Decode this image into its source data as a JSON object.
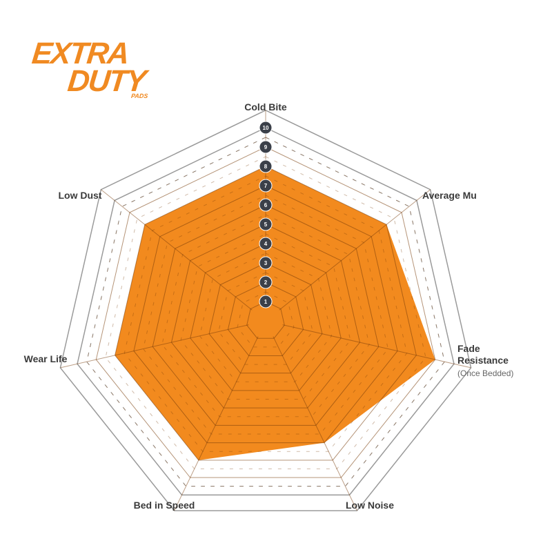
{
  "logo": {
    "line1": "EXTRA",
    "line2": "DUTY",
    "line3": "PADS"
  },
  "chart_data": {
    "type": "radar",
    "title": "",
    "axes": [
      {
        "label": "Cold Bite"
      },
      {
        "label": "Average Mu"
      },
      {
        "label": "Fade Resistance",
        "sublabel": "(Once Bedded)"
      },
      {
        "label": "Low Noise"
      },
      {
        "label": "Bed in Speed"
      },
      {
        "label": "Wear Life"
      },
      {
        "label": "Low Dust"
      }
    ],
    "values": [
      8,
      8,
      9,
      7,
      8,
      8,
      8
    ],
    "scale": {
      "min": 0,
      "max": 10,
      "ticks": [
        "1",
        "2",
        "3",
        "4",
        "5",
        "6",
        "7",
        "8",
        "9",
        "10"
      ]
    },
    "fill_color": "#f28a1e",
    "grid_color": "#9a9a9a",
    "tick_marker_color": "#3b4049"
  }
}
